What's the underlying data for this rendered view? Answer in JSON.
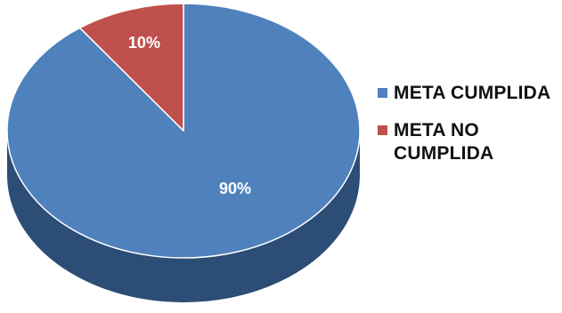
{
  "chart_data": {
    "type": "pie",
    "title": "",
    "slices": [
      {
        "label": "META CUMPLIDA",
        "value": 90,
        "display": "90%",
        "color": "#4F81BD",
        "shade": "#2C4D75"
      },
      {
        "label": "META NO CUMPLIDA",
        "value": 10,
        "display": "10%",
        "color": "#C0504D",
        "shade": "#7A2F2D"
      }
    ],
    "legend_position": "right",
    "three_d": true
  }
}
